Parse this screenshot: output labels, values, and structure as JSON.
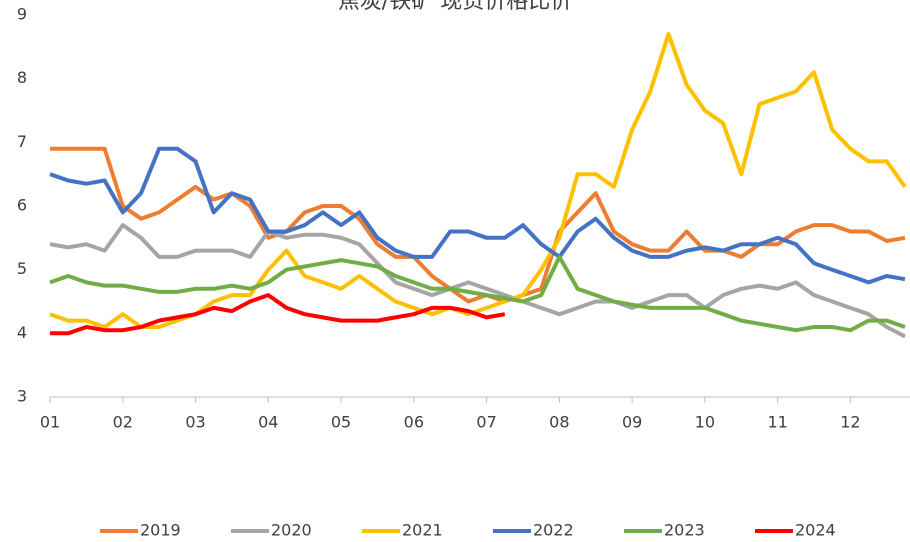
{
  "chart_data": {
    "type": "line",
    "title": "焦炭/铁矿 现货价格比价",
    "x": [
      1,
      1.25,
      1.5,
      1.75,
      2,
      2.25,
      2.5,
      2.75,
      3,
      3.25,
      3.5,
      3.75,
      4,
      4.25,
      4.5,
      4.75,
      5,
      5.25,
      5.5,
      5.75,
      6,
      6.25,
      6.5,
      6.75,
      7,
      7.25,
      7.5,
      7.75,
      8,
      8.25,
      8.5,
      8.75,
      9,
      9.25,
      9.5,
      9.75,
      10,
      10.25,
      10.5,
      10.75,
      11,
      11.25,
      11.5,
      11.75,
      12,
      12.25,
      12.5,
      12.75
    ],
    "xlim": [
      1,
      12.75
    ],
    "xticks": [
      {
        "value": 1,
        "label": "01"
      },
      {
        "value": 2,
        "label": "02"
      },
      {
        "value": 3,
        "label": "03"
      },
      {
        "value": 4,
        "label": "04"
      },
      {
        "value": 5,
        "label": "05"
      },
      {
        "value": 6,
        "label": "06"
      },
      {
        "value": 7,
        "label": "07"
      },
      {
        "value": 8,
        "label": "08"
      },
      {
        "value": 9,
        "label": "09"
      },
      {
        "value": 10,
        "label": "10"
      },
      {
        "value": 11,
        "label": "11"
      },
      {
        "value": 12,
        "label": "12"
      }
    ],
    "ylim": [
      3,
      9
    ],
    "yticks": [
      3,
      4,
      5,
      6,
      7,
      8,
      9
    ],
    "series": [
      {
        "name": "2019",
        "color": "#ED7D31",
        "values": [
          6.9,
          6.9,
          6.9,
          6.9,
          6.0,
          5.8,
          5.9,
          6.1,
          6.3,
          6.1,
          6.2,
          6.0,
          5.5,
          5.6,
          5.9,
          6.0,
          6.0,
          5.8,
          5.4,
          5.2,
          5.2,
          4.9,
          4.7,
          4.5,
          4.6,
          4.5,
          4.6,
          4.7,
          5.6,
          5.9,
          6.2,
          5.6,
          5.4,
          5.3,
          5.3,
          5.6,
          5.3,
          5.3,
          5.2,
          5.4,
          5.4,
          5.6,
          5.7,
          5.7,
          5.6,
          5.6,
          5.45,
          5.5
        ]
      },
      {
        "name": "2020",
        "color": "#A5A5A5",
        "values": [
          5.4,
          5.35,
          5.4,
          5.3,
          5.7,
          5.5,
          5.2,
          5.2,
          5.3,
          5.3,
          5.3,
          5.2,
          5.6,
          5.5,
          5.55,
          5.55,
          5.5,
          5.4,
          5.1,
          4.8,
          4.7,
          4.6,
          4.7,
          4.8,
          4.7,
          4.6,
          4.5,
          4.4,
          4.3,
          4.4,
          4.5,
          4.5,
          4.4,
          4.5,
          4.6,
          4.6,
          4.4,
          4.6,
          4.7,
          4.75,
          4.7,
          4.8,
          4.6,
          4.5,
          4.4,
          4.3,
          4.1,
          3.95
        ]
      },
      {
        "name": "2021",
        "color": "#FFC000",
        "values": [
          4.3,
          4.2,
          4.2,
          4.1,
          4.3,
          4.1,
          4.1,
          4.2,
          4.3,
          4.5,
          4.6,
          4.6,
          5.0,
          5.3,
          4.9,
          4.8,
          4.7,
          4.9,
          4.7,
          4.5,
          4.4,
          4.3,
          4.4,
          4.3,
          4.4,
          4.5,
          4.6,
          5.0,
          5.5,
          6.5,
          6.5,
          6.3,
          7.2,
          7.8,
          8.7,
          7.9,
          7.5,
          7.3,
          6.5,
          7.6,
          7.7,
          7.8,
          8.1,
          7.2,
          6.9,
          6.7,
          6.7,
          6.3
        ]
      },
      {
        "name": "2022",
        "color": "#4472C4",
        "values": [
          6.5,
          6.4,
          6.35,
          6.4,
          5.9,
          6.2,
          6.9,
          6.9,
          6.7,
          5.9,
          6.2,
          6.1,
          5.6,
          5.6,
          5.7,
          5.9,
          5.7,
          5.9,
          5.5,
          5.3,
          5.2,
          5.2,
          5.6,
          5.6,
          5.5,
          5.5,
          5.7,
          5.4,
          5.2,
          5.6,
          5.8,
          5.5,
          5.3,
          5.2,
          5.2,
          5.3,
          5.35,
          5.3,
          5.4,
          5.4,
          5.5,
          5.4,
          5.1,
          5.0,
          4.9,
          4.8,
          4.9,
          4.85
        ]
      },
      {
        "name": "2023",
        "color": "#70AD47",
        "values": [
          4.8,
          4.9,
          4.8,
          4.75,
          4.75,
          4.7,
          4.65,
          4.65,
          4.7,
          4.7,
          4.75,
          4.7,
          4.8,
          5.0,
          5.05,
          5.1,
          5.15,
          5.1,
          5.05,
          4.9,
          4.8,
          4.7,
          4.7,
          4.65,
          4.6,
          4.55,
          4.5,
          4.6,
          5.2,
          4.7,
          4.6,
          4.5,
          4.45,
          4.4,
          4.4,
          4.4,
          4.4,
          4.3,
          4.2,
          4.15,
          4.1,
          4.05,
          4.1,
          4.1,
          4.05,
          4.2,
          4.2,
          4.1
        ]
      },
      {
        "name": "2024",
        "color": "#FF0000",
        "values": [
          4.0,
          4.0,
          4.1,
          4.05,
          4.05,
          4.1,
          4.2,
          4.25,
          4.3,
          4.4,
          4.35,
          4.5,
          4.6,
          4.4,
          4.3,
          4.25,
          4.2,
          4.2,
          4.2,
          4.25,
          4.3,
          4.4,
          4.4,
          4.35,
          4.25,
          4.3,
          null,
          null,
          null,
          null,
          null,
          null,
          null,
          null,
          null,
          null,
          null,
          null,
          null,
          null,
          null,
          null,
          null,
          null,
          null,
          null,
          null,
          null
        ]
      }
    ]
  }
}
